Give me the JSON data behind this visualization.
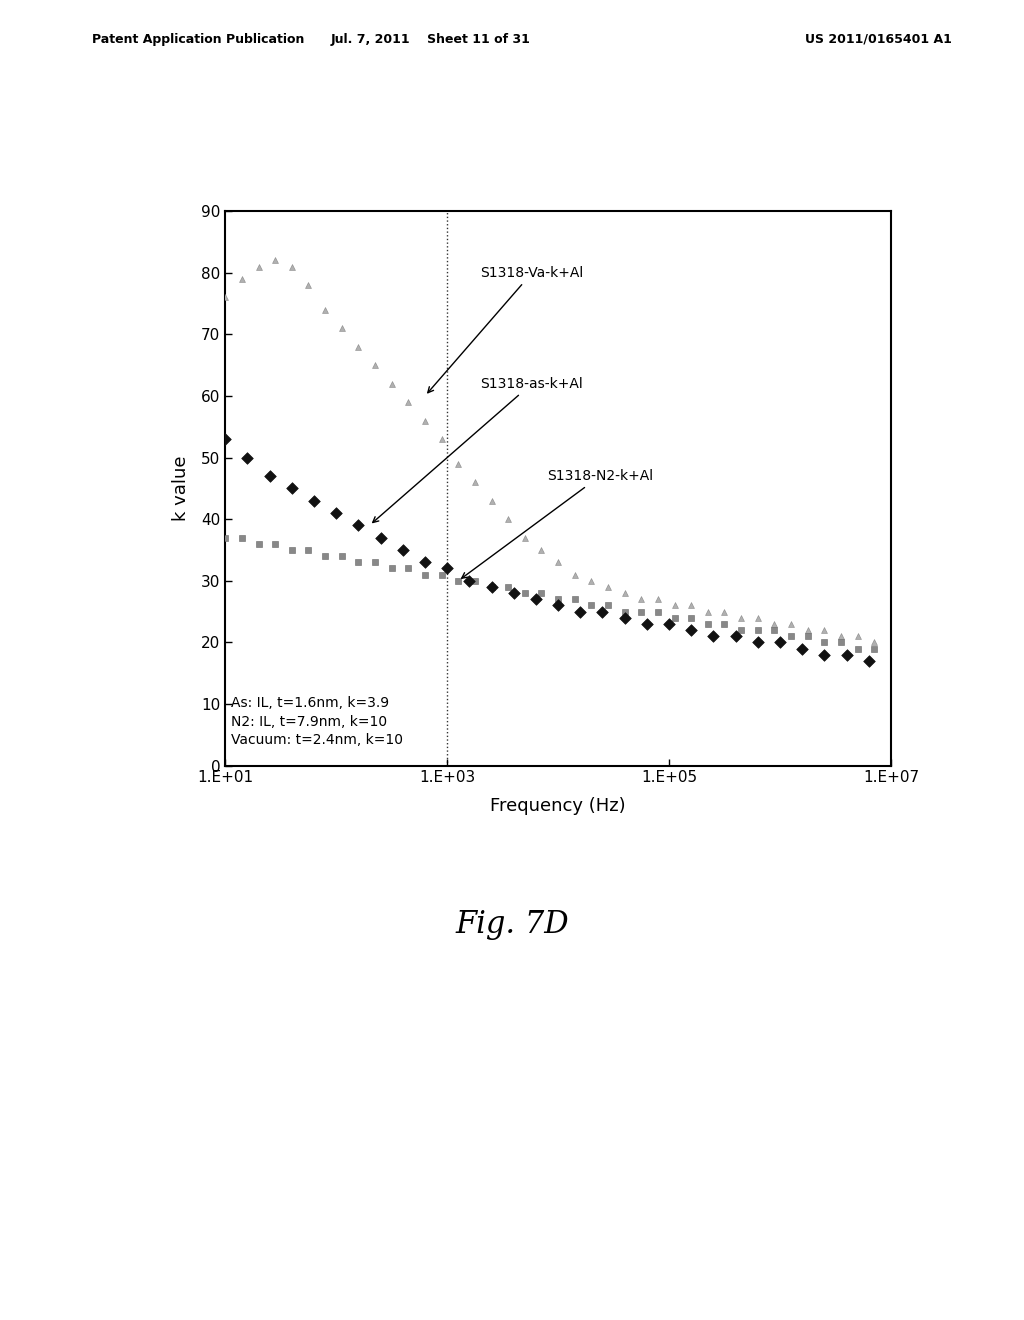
{
  "title": "",
  "xlabel": "Frequency (Hz)",
  "ylabel": "k value",
  "fig_caption": "Fig. 7D",
  "header_left": "Patent Application Publication",
  "header_center": "Jul. 7, 2011    Sheet 11 of 31",
  "header_right": "US 2011/0165401 A1",
  "xlim_log": [
    1,
    7
  ],
  "ylim": [
    0,
    90
  ],
  "yticks": [
    0,
    10,
    20,
    30,
    40,
    50,
    60,
    70,
    80,
    90
  ],
  "xtick_labels": [
    "1.E+01",
    "1.E+03",
    "1.E+05",
    "1.E+07"
  ],
  "xtick_positions": [
    1,
    3,
    5,
    7
  ],
  "annotation_text": "As: IL, t=1.6nm, k=3.9\nN2: IL, t=7.9nm, k=10\nVacuum: t=2.4nm, k=10",
  "vline_x": 3,
  "va_x": [
    1.0,
    1.15,
    1.3,
    1.45,
    1.6,
    1.75,
    1.9,
    2.05,
    2.2,
    2.35,
    2.5,
    2.65,
    2.8,
    2.95,
    3.1,
    3.25,
    3.4,
    3.55,
    3.7,
    3.85,
    4.0,
    4.15,
    4.3,
    4.45,
    4.6,
    4.75,
    4.9,
    5.05,
    5.2,
    5.35,
    5.5,
    5.65,
    5.8,
    5.95,
    6.1,
    6.25,
    6.4,
    6.55,
    6.7,
    6.85
  ],
  "va_y": [
    76,
    79,
    81,
    82,
    81,
    78,
    74,
    71,
    68,
    65,
    62,
    59,
    56,
    53,
    49,
    46,
    43,
    40,
    37,
    35,
    33,
    31,
    30,
    29,
    28,
    27,
    27,
    26,
    26,
    25,
    25,
    24,
    24,
    23,
    23,
    22,
    22,
    21,
    21,
    20
  ],
  "as_x": [
    1.0,
    1.2,
    1.4,
    1.6,
    1.8,
    2.0,
    2.2,
    2.4,
    2.6,
    2.8,
    3.0,
    3.2,
    3.4,
    3.6,
    3.8,
    4.0,
    4.2,
    4.4,
    4.6,
    4.8,
    5.0,
    5.2,
    5.4,
    5.6,
    5.8,
    6.0,
    6.2,
    6.4,
    6.6,
    6.8
  ],
  "as_y": [
    53,
    50,
    47,
    45,
    43,
    41,
    39,
    37,
    35,
    33,
    32,
    30,
    29,
    28,
    27,
    26,
    25,
    25,
    24,
    23,
    23,
    22,
    21,
    21,
    20,
    20,
    19,
    18,
    18,
    17
  ],
  "n2_x": [
    1.0,
    1.15,
    1.3,
    1.45,
    1.6,
    1.75,
    1.9,
    2.05,
    2.2,
    2.35,
    2.5,
    2.65,
    2.8,
    2.95,
    3.1,
    3.25,
    3.4,
    3.55,
    3.7,
    3.85,
    4.0,
    4.15,
    4.3,
    4.45,
    4.6,
    4.75,
    4.9,
    5.05,
    5.2,
    5.35,
    5.5,
    5.65,
    5.8,
    5.95,
    6.1,
    6.25,
    6.4,
    6.55,
    6.7,
    6.85
  ],
  "n2_y": [
    37,
    37,
    36,
    36,
    35,
    35,
    34,
    34,
    33,
    33,
    32,
    32,
    31,
    31,
    30,
    30,
    29,
    29,
    28,
    28,
    27,
    27,
    26,
    26,
    25,
    25,
    25,
    24,
    24,
    23,
    23,
    22,
    22,
    22,
    21,
    21,
    20,
    20,
    19,
    19
  ]
}
